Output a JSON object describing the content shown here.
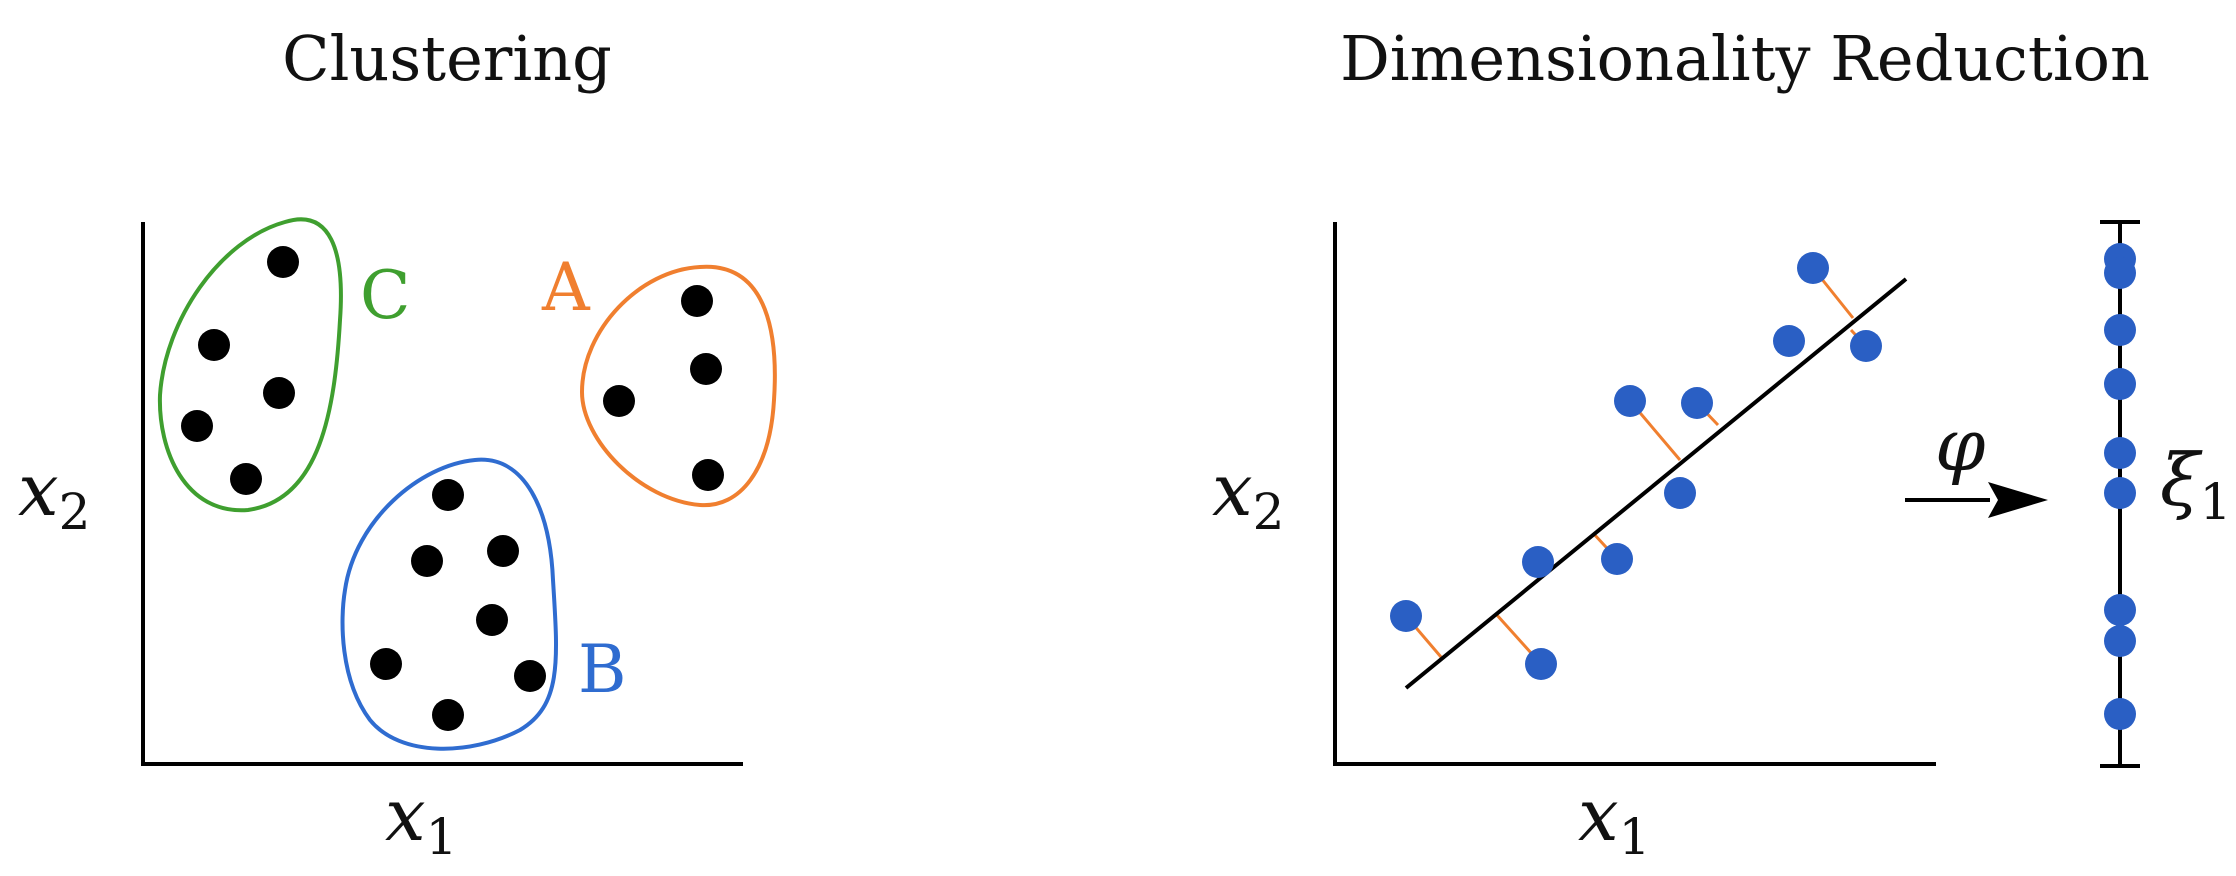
{
  "colors": {
    "cluster_a": "#f07f2f",
    "cluster_b": "#2f6cd0",
    "cluster_c": "#3f9f2f",
    "point_black": "#000000",
    "point_blue": "#2a5fc4",
    "projection": "#f07f2f",
    "axis": "#000000"
  },
  "clustering": {
    "title": "Clustering",
    "xlabel": {
      "base": "x",
      "sub": "1"
    },
    "ylabel": {
      "base": "x",
      "sub": "2"
    },
    "clusters": [
      {
        "label": "C",
        "color": "#3f9f2f"
      },
      {
        "label": "A",
        "color": "#f07f2f"
      },
      {
        "label": "B",
        "color": "#2f6cd0"
      }
    ]
  },
  "dimred": {
    "title": "Dimensionality Reduction",
    "xlabel": {
      "base": "x",
      "sub": "1"
    },
    "ylabel": {
      "base": "x",
      "sub": "2"
    },
    "map_symbol": "φ",
    "latent_label": {
      "base": "ξ",
      "sub": "1"
    }
  }
}
